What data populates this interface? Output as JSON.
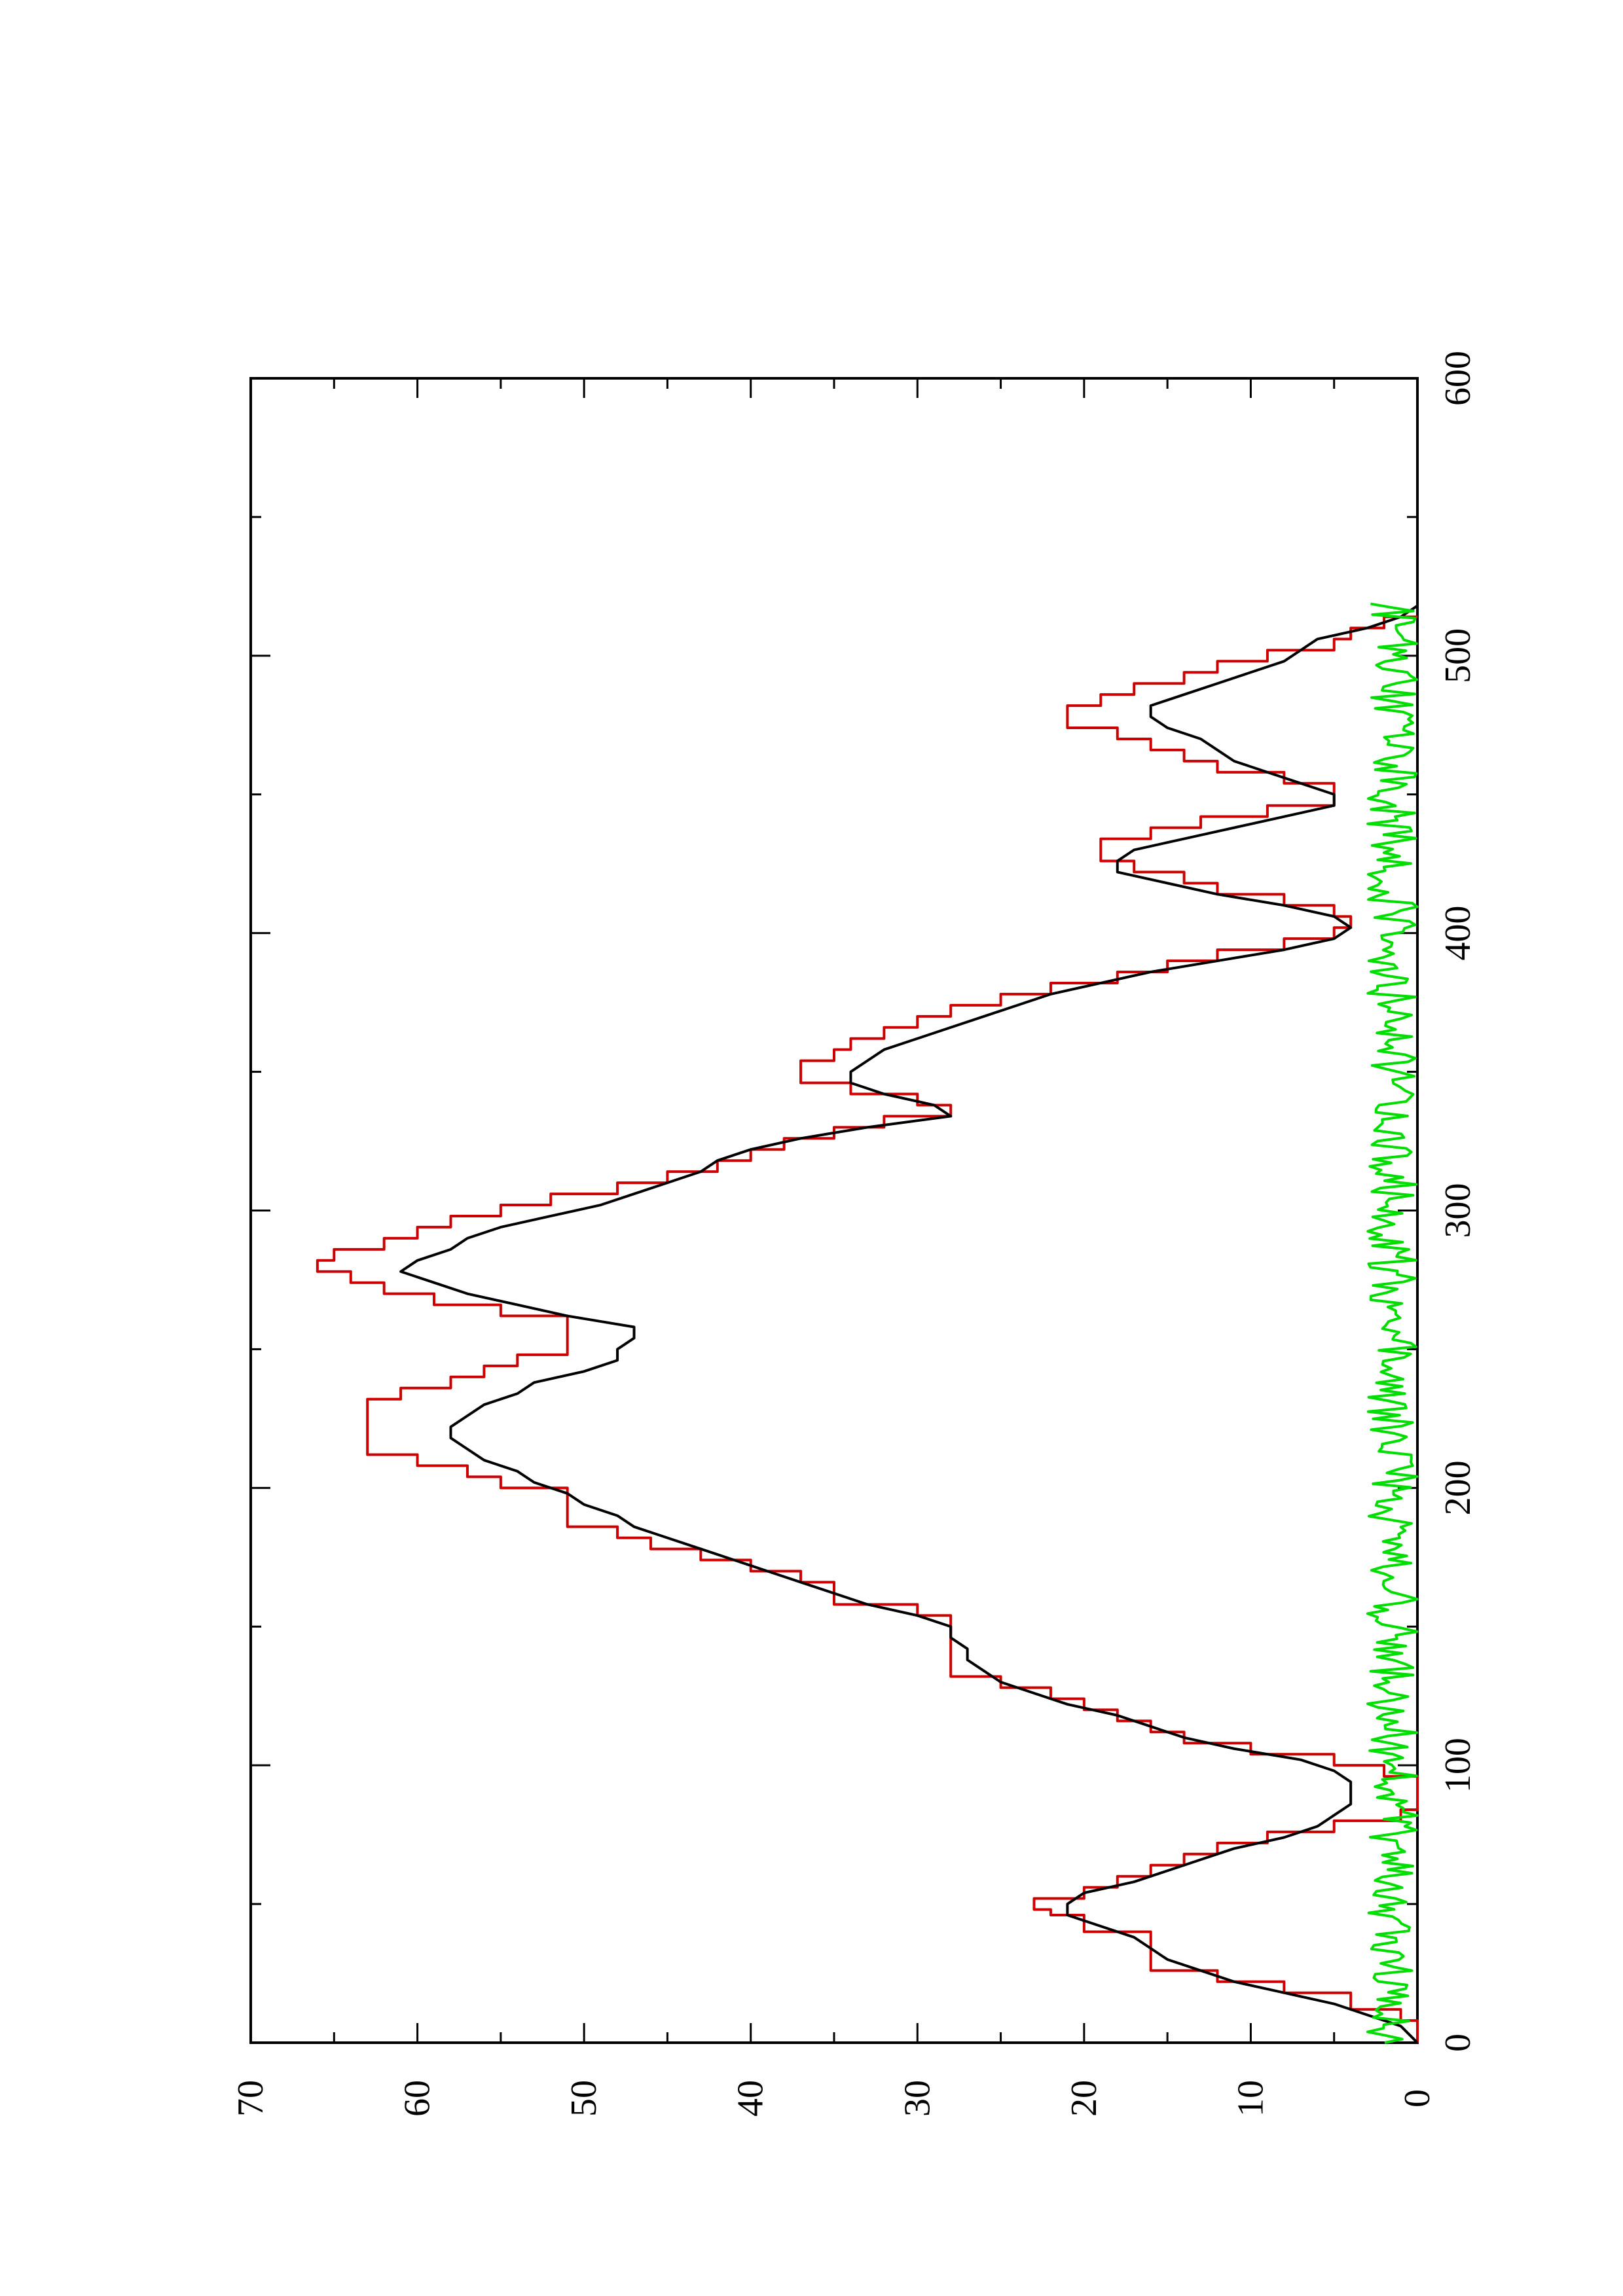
{
  "chart_data": {
    "type": "line",
    "orientation": "rotated-90-ccw",
    "xlim": [
      0,
      600
    ],
    "ylim": [
      0,
      70
    ],
    "x_ticks": [
      "0",
      "100",
      "200",
      "300",
      "400",
      "500",
      "600"
    ],
    "y_ticks": [
      "0",
      "10",
      "20",
      "30",
      "40",
      "50",
      "60",
      "70"
    ],
    "x_minor_step": 50,
    "y_minor_step": 5,
    "grid": false,
    "series": [
      {
        "color": "#cc0000",
        "style": "step",
        "points": [
          [
            0,
            0
          ],
          [
            8,
            1
          ],
          [
            12,
            4
          ],
          [
            18,
            8
          ],
          [
            22,
            12
          ],
          [
            26,
            16
          ],
          [
            38,
            16
          ],
          [
            40,
            20
          ],
          [
            46,
            22
          ],
          [
            48,
            23
          ],
          [
            52,
            20
          ],
          [
            56,
            18
          ],
          [
            60,
            16
          ],
          [
            64,
            14
          ],
          [
            68,
            12
          ],
          [
            72,
            9
          ],
          [
            76,
            5
          ],
          [
            80,
            1
          ],
          [
            84,
            0
          ],
          [
            92,
            0
          ],
          [
            96,
            2
          ],
          [
            100,
            5
          ],
          [
            104,
            10
          ],
          [
            108,
            14
          ],
          [
            112,
            16
          ],
          [
            116,
            18
          ],
          [
            120,
            20
          ],
          [
            124,
            22
          ],
          [
            128,
            25
          ],
          [
            132,
            28
          ],
          [
            150,
            28
          ],
          [
            154,
            30
          ],
          [
            158,
            35
          ],
          [
            162,
            35
          ],
          [
            166,
            37
          ],
          [
            170,
            40
          ],
          [
            174,
            43
          ],
          [
            178,
            46
          ],
          [
            182,
            48
          ],
          [
            186,
            51
          ],
          [
            196,
            51
          ],
          [
            200,
            55
          ],
          [
            204,
            57
          ],
          [
            208,
            60
          ],
          [
            212,
            63
          ],
          [
            228,
            63
          ],
          [
            232,
            61
          ],
          [
            236,
            58
          ],
          [
            240,
            56
          ],
          [
            244,
            54
          ],
          [
            248,
            51
          ],
          [
            258,
            51
          ],
          [
            262,
            55
          ],
          [
            266,
            59
          ],
          [
            270,
            62
          ],
          [
            274,
            64
          ],
          [
            278,
            66
          ],
          [
            282,
            65
          ],
          [
            286,
            62
          ],
          [
            290,
            60
          ],
          [
            294,
            58
          ],
          [
            298,
            55
          ],
          [
            302,
            52
          ],
          [
            306,
            48
          ],
          [
            310,
            45
          ],
          [
            314,
            42
          ],
          [
            318,
            40
          ],
          [
            322,
            38
          ],
          [
            326,
            35
          ],
          [
            330,
            32
          ],
          [
            334,
            28
          ],
          [
            338,
            30
          ],
          [
            342,
            34
          ],
          [
            346,
            37
          ],
          [
            350,
            37
          ],
          [
            354,
            35
          ],
          [
            358,
            34
          ],
          [
            362,
            32
          ],
          [
            366,
            30
          ],
          [
            370,
            28
          ],
          [
            374,
            25
          ],
          [
            378,
            22
          ],
          [
            382,
            18
          ],
          [
            386,
            15
          ],
          [
            390,
            12
          ],
          [
            394,
            8
          ],
          [
            398,
            5
          ],
          [
            402,
            4
          ],
          [
            406,
            5
          ],
          [
            410,
            8
          ],
          [
            414,
            12
          ],
          [
            418,
            14
          ],
          [
            422,
            17
          ],
          [
            426,
            19
          ],
          [
            430,
            19
          ],
          [
            434,
            16
          ],
          [
            438,
            13
          ],
          [
            442,
            9
          ],
          [
            446,
            5
          ],
          [
            450,
            5
          ],
          [
            454,
            8
          ],
          [
            458,
            12
          ],
          [
            462,
            14
          ],
          [
            466,
            16
          ],
          [
            470,
            18
          ],
          [
            474,
            21
          ],
          [
            478,
            21
          ],
          [
            482,
            19
          ],
          [
            486,
            17
          ],
          [
            490,
            14
          ],
          [
            494,
            12
          ],
          [
            498,
            9
          ],
          [
            502,
            5
          ],
          [
            506,
            4
          ],
          [
            510,
            2
          ],
          [
            514,
            0
          ]
        ]
      },
      {
        "color": "#000000",
        "style": "line",
        "points": [
          [
            0,
            0
          ],
          [
            6,
            1
          ],
          [
            10,
            3
          ],
          [
            14,
            5
          ],
          [
            18,
            8
          ],
          [
            22,
            11
          ],
          [
            26,
            13
          ],
          [
            30,
            15
          ],
          [
            34,
            16
          ],
          [
            38,
            17
          ],
          [
            42,
            19
          ],
          [
            46,
            21
          ],
          [
            50,
            21
          ],
          [
            54,
            20
          ],
          [
            58,
            17
          ],
          [
            62,
            15
          ],
          [
            66,
            13
          ],
          [
            70,
            11
          ],
          [
            74,
            8
          ],
          [
            78,
            6
          ],
          [
            82,
            5
          ],
          [
            86,
            4
          ],
          [
            90,
            4
          ],
          [
            94,
            4
          ],
          [
            98,
            5
          ],
          [
            102,
            7
          ],
          [
            106,
            11
          ],
          [
            110,
            14
          ],
          [
            114,
            16
          ],
          [
            118,
            18
          ],
          [
            122,
            21
          ],
          [
            126,
            23
          ],
          [
            130,
            25
          ],
          [
            134,
            26
          ],
          [
            138,
            27
          ],
          [
            142,
            27
          ],
          [
            146,
            28
          ],
          [
            150,
            28
          ],
          [
            154,
            30
          ],
          [
            158,
            33
          ],
          [
            162,
            35
          ],
          [
            166,
            37
          ],
          [
            170,
            39
          ],
          [
            174,
            41
          ],
          [
            178,
            43
          ],
          [
            182,
            45
          ],
          [
            186,
            47
          ],
          [
            190,
            48
          ],
          [
            194,
            50
          ],
          [
            198,
            51
          ],
          [
            202,
            53
          ],
          [
            206,
            54
          ],
          [
            210,
            56
          ],
          [
            214,
            57
          ],
          [
            218,
            58
          ],
          [
            222,
            58
          ],
          [
            226,
            57
          ],
          [
            230,
            56
          ],
          [
            234,
            54
          ],
          [
            238,
            53
          ],
          [
            242,
            50
          ],
          [
            246,
            48
          ],
          [
            250,
            48
          ],
          [
            254,
            47
          ],
          [
            258,
            47
          ],
          [
            262,
            51
          ],
          [
            266,
            54
          ],
          [
            270,
            57
          ],
          [
            274,
            59
          ],
          [
            278,
            61
          ],
          [
            282,
            60
          ],
          [
            286,
            58
          ],
          [
            290,
            57
          ],
          [
            294,
            55
          ],
          [
            298,
            52
          ],
          [
            302,
            49
          ],
          [
            306,
            47
          ],
          [
            310,
            45
          ],
          [
            314,
            43
          ],
          [
            318,
            42
          ],
          [
            322,
            40
          ],
          [
            326,
            37
          ],
          [
            330,
            33
          ],
          [
            334,
            28
          ],
          [
            338,
            29
          ],
          [
            342,
            32
          ],
          [
            346,
            34
          ],
          [
            350,
            34
          ],
          [
            354,
            33
          ],
          [
            358,
            32
          ],
          [
            362,
            30
          ],
          [
            366,
            28
          ],
          [
            370,
            26
          ],
          [
            374,
            24
          ],
          [
            378,
            22
          ],
          [
            382,
            19
          ],
          [
            386,
            16
          ],
          [
            390,
            12
          ],
          [
            394,
            8
          ],
          [
            398,
            5
          ],
          [
            402,
            4
          ],
          [
            406,
            5
          ],
          [
            410,
            8
          ],
          [
            414,
            12
          ],
          [
            418,
            15
          ],
          [
            422,
            18
          ],
          [
            426,
            18
          ],
          [
            430,
            17
          ],
          [
            434,
            14
          ],
          [
            438,
            11
          ],
          [
            442,
            8
          ],
          [
            446,
            5
          ],
          [
            450,
            5
          ],
          [
            454,
            7
          ],
          [
            458,
            9
          ],
          [
            462,
            11
          ],
          [
            466,
            12
          ],
          [
            470,
            13
          ],
          [
            474,
            15
          ],
          [
            478,
            16
          ],
          [
            482,
            16
          ],
          [
            486,
            14
          ],
          [
            490,
            12
          ],
          [
            494,
            10
          ],
          [
            498,
            8
          ],
          [
            502,
            7
          ],
          [
            506,
            6
          ],
          [
            510,
            3
          ],
          [
            514,
            1
          ],
          [
            518,
            0
          ]
        ]
      },
      {
        "color": "#00dd00",
        "style": "line",
        "noisy": true,
        "x_range": [
          0,
          520
        ],
        "y_range": [
          0,
          3
        ]
      }
    ]
  }
}
